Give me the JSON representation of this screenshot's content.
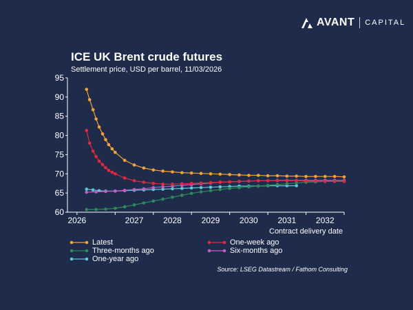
{
  "brand": {
    "name": "AVANT",
    "sub": "CAPITAL",
    "logo_icon": "avant-mountain-logo-icon"
  },
  "chart_data": {
    "type": "line",
    "title": "ICE UK Brent crude futures",
    "subtitle": "Settlement price, USD per barrel, 11/03/2026",
    "xlabel": "Contract delivery date",
    "ylabel": "",
    "ylim": [
      60,
      95
    ],
    "yticks": [
      60,
      65,
      70,
      75,
      80,
      85,
      90,
      95
    ],
    "x_tick_labels": [
      "2026",
      "2027",
      "2028",
      "2029",
      "2030",
      "2031",
      "2032"
    ],
    "grid": false,
    "legend_position": "bottom",
    "source": "Source: LSEG Datastream / Fathom Consulting",
    "series": [
      {
        "name": "Latest",
        "color": "#f4a235",
        "x": [
          2026.25,
          2026.33,
          2026.42,
          2026.5,
          2026.58,
          2026.67,
          2026.75,
          2026.83,
          2026.92,
          2027.0,
          2027.25,
          2027.5,
          2027.75,
          2028.0,
          2028.25,
          2028.5,
          2028.75,
          2029.0,
          2029.25,
          2029.5,
          2029.75,
          2030.0,
          2030.25,
          2030.5,
          2030.75,
          2031.0,
          2031.25,
          2031.5,
          2031.75,
          2032.0,
          2032.25,
          2032.5,
          2032.75,
          2033.0
        ],
        "y": [
          92.0,
          89.3,
          86.7,
          84.3,
          82.2,
          80.4,
          78.9,
          77.6,
          76.5,
          75.6,
          73.5,
          72.3,
          71.5,
          71.0,
          70.7,
          70.5,
          70.3,
          70.2,
          70.1,
          70.0,
          69.9,
          69.8,
          69.7,
          69.6,
          69.6,
          69.5,
          69.5,
          69.4,
          69.4,
          69.3,
          69.3,
          69.3,
          69.3,
          69.2
        ]
      },
      {
        "name": "One-week ago",
        "color": "#e5283c",
        "x": [
          2026.25,
          2026.33,
          2026.42,
          2026.5,
          2026.58,
          2026.67,
          2026.75,
          2026.83,
          2026.92,
          2027.0,
          2027.25,
          2027.5,
          2027.75,
          2028.0,
          2028.25,
          2028.5,
          2028.75,
          2029.0,
          2029.25,
          2029.5,
          2029.75,
          2030.0,
          2030.25,
          2030.5,
          2030.75,
          2031.0,
          2031.25,
          2031.5,
          2031.75,
          2032.0,
          2032.25,
          2032.5,
          2032.75,
          2033.0
        ],
        "y": [
          81.3,
          78.0,
          75.9,
          74.5,
          73.3,
          72.4,
          71.6,
          70.9,
          70.4,
          70.0,
          68.9,
          68.2,
          67.8,
          67.5,
          67.3,
          67.3,
          67.4,
          67.5,
          67.6,
          67.7,
          67.8,
          67.9,
          68.0,
          68.1,
          68.2,
          68.2,
          68.2,
          68.2,
          68.2,
          68.1,
          68.1,
          68.0,
          68.0,
          68.0
        ]
      },
      {
        "name": "Three-months ago",
        "color": "#2e8b57",
        "x": [
          2026.25,
          2026.5,
          2026.75,
          2027.0,
          2027.25,
          2027.5,
          2027.75,
          2028.0,
          2028.25,
          2028.5,
          2028.75,
          2029.0,
          2029.25,
          2029.5,
          2029.75,
          2030.0,
          2030.25,
          2030.5,
          2030.75,
          2031.0,
          2031.25,
          2031.5,
          2031.75,
          2032.0,
          2032.25,
          2032.5,
          2032.75,
          2033.0
        ],
        "y": [
          60.7,
          60.7,
          60.8,
          61.0,
          61.4,
          61.9,
          62.4,
          62.9,
          63.4,
          63.9,
          64.4,
          64.9,
          65.3,
          65.6,
          65.9,
          66.2,
          66.4,
          66.6,
          66.8,
          67.0,
          67.2,
          67.4,
          67.6,
          67.8,
          67.9,
          68.0,
          68.1,
          68.1
        ]
      },
      {
        "name": "Six-months ago",
        "color": "#c45ec4",
        "x": [
          2026.25,
          2026.5,
          2026.75,
          2027.0,
          2027.25,
          2027.5,
          2027.75,
          2028.0,
          2028.25,
          2028.5,
          2028.75,
          2029.0,
          2029.25,
          2029.5,
          2029.75,
          2030.0,
          2030.25,
          2030.5,
          2030.75,
          2031.0,
          2031.25,
          2031.5,
          2031.75,
          2032.0,
          2032.25,
          2032.5,
          2032.75,
          2033.0
        ],
        "y": [
          65.2,
          65.3,
          65.4,
          65.5,
          65.7,
          65.9,
          66.1,
          66.4,
          66.6,
          66.8,
          67.0,
          67.2,
          67.4,
          67.6,
          67.8,
          67.9,
          68.0,
          68.1,
          68.2,
          68.2,
          68.3,
          68.3,
          68.3,
          68.3,
          68.3,
          68.3,
          68.3,
          68.3
        ]
      },
      {
        "name": "One-year ago",
        "color": "#5ec8d8",
        "x": [
          2026.25,
          2026.42,
          2026.58,
          2026.75,
          2027.0,
          2027.25,
          2027.5,
          2027.75,
          2028.0,
          2028.25,
          2028.5,
          2028.75,
          2029.0,
          2029.25,
          2029.5,
          2029.75,
          2030.0,
          2030.25,
          2030.5,
          2030.75,
          2031.0,
          2031.25,
          2031.5,
          2031.75
        ],
        "y": [
          66.0,
          65.8,
          65.6,
          65.5,
          65.5,
          65.6,
          65.7,
          65.8,
          65.9,
          66.0,
          66.1,
          66.2,
          66.3,
          66.4,
          66.5,
          66.6,
          66.7,
          66.8,
          66.8,
          66.8,
          66.9,
          66.9,
          66.9,
          66.9
        ]
      }
    ]
  }
}
